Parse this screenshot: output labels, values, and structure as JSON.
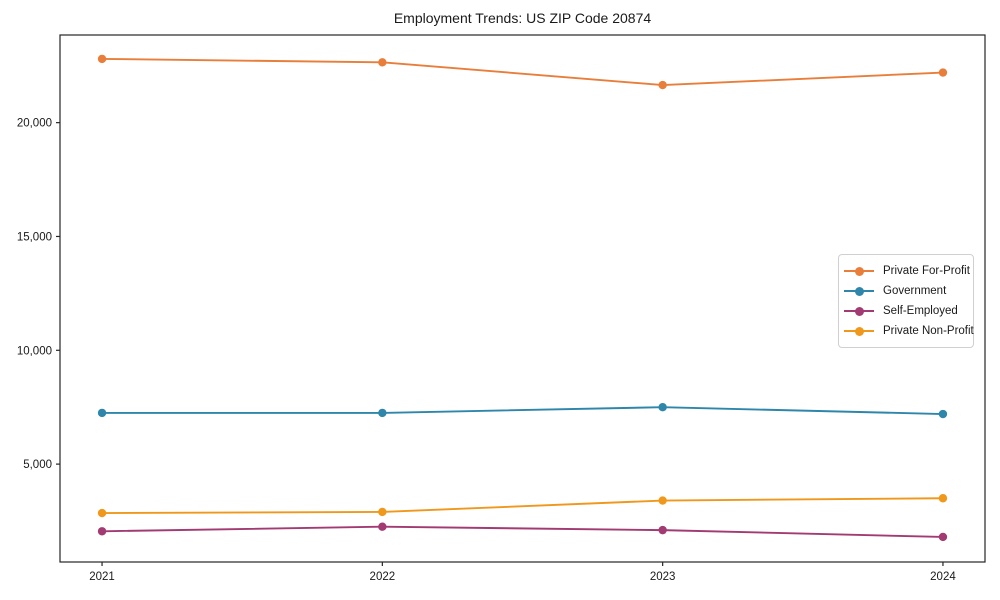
{
  "chart_data": {
    "type": "line",
    "title": "Employment Trends: US ZIP Code 20874",
    "x": [
      2021,
      2022,
      2023,
      2024
    ],
    "x_tick_labels": [
      "2021",
      "2022",
      "2023",
      "2024"
    ],
    "series": [
      {
        "name": "Private For-Profit",
        "color": "#E87E3A",
        "values": [
          22800,
          22650,
          21650,
          22200
        ]
      },
      {
        "name": "Government",
        "color": "#2E86AB",
        "values": [
          7250,
          7250,
          7500,
          7200
        ]
      },
      {
        "name": "Self-Employed",
        "color": "#A23B72",
        "values": [
          2050,
          2250,
          2100,
          1800
        ]
      },
      {
        "name": "Private Non-Profit",
        "color": "#F0981B",
        "values": [
          2850,
          2900,
          3400,
          3500
        ]
      }
    ],
    "yticks": [
      5000,
      10000,
      15000,
      20000
    ],
    "ytick_labels": [
      "5,000",
      "10,000",
      "15,000",
      "20,000"
    ],
    "ylim": [
      700,
      23850
    ],
    "xlim": [
      2020.85,
      2024.15
    ],
    "grid": false,
    "marker": "circle",
    "legend_position": "center right",
    "axis_color": "#262626",
    "text_color": "#1a1a1a"
  }
}
